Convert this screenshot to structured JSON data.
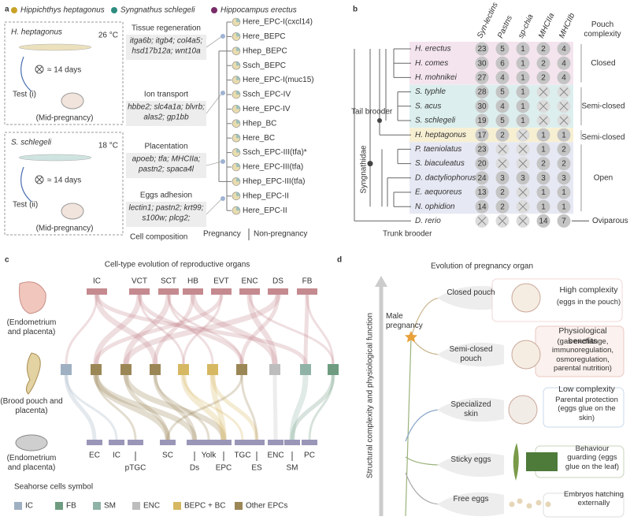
{
  "panel_a": {
    "letter": "a",
    "species": [
      "Hippichthys heptagonus",
      "Syngnathus schlegeli",
      "Hippocampus erectus"
    ],
    "species_colors": [
      "#c9a227",
      "#2e8b80",
      "#7a2c68"
    ],
    "experiments": [
      {
        "species": "H. heptagonus",
        "temperature": "26 °C",
        "duration": "≈ 14 days",
        "test": "Test (i)",
        "stage": "(Mid-pregnancy)"
      },
      {
        "species": "S. schlegeli",
        "temperature": "18 °C",
        "duration": "≈ 14 days",
        "test": "Test (ii)",
        "stage": "(Mid-pregnancy)"
      }
    ],
    "functions": [
      {
        "title": "Tissue regeneration",
        "genes": [
          "itga6b; itgb4; col4a5;",
          "hsd17b12a; wnt10a"
        ]
      },
      {
        "title": "Ion transport",
        "genes": [
          "hbbe2; slc4a1a; blvrb;",
          "alas2; gp1bb"
        ]
      },
      {
        "title": "Placentation",
        "genes": [
          "apoeb; tfa; MHCIIa;",
          "pastn2; spaca4l"
        ]
      },
      {
        "title": "Eggs adhesion",
        "genes": [
          "lectin1; pastn2; krt99;",
          "s100w; plcg2;"
        ]
      }
    ],
    "clusters": [
      {
        "label": "Here_EPC-I(cxcl14)",
        "color": "#7a2c68"
      },
      {
        "label": "Here_BEPC",
        "color": "#7a2c68"
      },
      {
        "label": "Hhep_BEPC",
        "color": "#c9a227"
      },
      {
        "label": "Ssch_BEPC",
        "color": "#2e8b80"
      },
      {
        "label": "Here_EPC-I(muc15)",
        "color": "#7a2c68"
      },
      {
        "label": "Ssch_EPC-IV",
        "color": "#2e8b80"
      },
      {
        "label": "Here_EPC-IV",
        "color": "#7a2c68"
      },
      {
        "label": "Hhep_BC",
        "color": "#c9a227"
      },
      {
        "label": "Here_BC",
        "color": "#7a2c68"
      },
      {
        "label": "Ssch_EPC-III(tfa)*",
        "color": "#2e8b80"
      },
      {
        "label": "Here_EPC-III(tfa)",
        "color": "#7a2c68"
      },
      {
        "label": "Hhep_EPC-III(tfa)",
        "color": "#c9a227"
      },
      {
        "label": "Hhep_EPC-II",
        "color": "#c9a227"
      },
      {
        "label": "Here_EPC-II",
        "color": "#7a2c68"
      }
    ],
    "cell_composition": "Cell composition",
    "pregnancy": "Pregnancy",
    "non_pregnancy": "Non-pregnancy"
  },
  "panel_b": {
    "letter": "b",
    "columns": [
      "Syn-lectins",
      "Pastns",
      "sp-chia",
      "MHCIIa",
      "MHCIIb"
    ],
    "pouch_complexity": "Pouch complexity",
    "rows": [
      {
        "species": "H. erectus",
        "counts": [
          23,
          5,
          1,
          2,
          4
        ]
      },
      {
        "species": "H. comes",
        "counts": [
          30,
          6,
          1,
          2,
          4
        ]
      },
      {
        "species": "H. mohnikei",
        "counts": [
          27,
          4,
          1,
          2,
          4
        ]
      },
      {
        "species": "S. typhle",
        "counts": [
          28,
          5,
          1,
          null,
          null
        ]
      },
      {
        "species": "S. acus",
        "counts": [
          30,
          4,
          1,
          null,
          null
        ]
      },
      {
        "species": "S. schlegeli",
        "counts": [
          19,
          5,
          1,
          null,
          null
        ]
      },
      {
        "species": "H. heptagonus",
        "counts": [
          17,
          2,
          null,
          1,
          1
        ]
      },
      {
        "species": "P. taeniolatus",
        "counts": [
          23,
          null,
          null,
          1,
          2
        ]
      },
      {
        "species": "S. biaculeatus",
        "counts": [
          20,
          null,
          null,
          2,
          2
        ]
      },
      {
        "species": "D. dactyliophorus",
        "counts": [
          24,
          3,
          3,
          3,
          3
        ]
      },
      {
        "species": "E. aequoreus",
        "counts": [
          13,
          2,
          null,
          1,
          1
        ]
      },
      {
        "species": "N. ophidion",
        "counts": [
          14,
          2,
          null,
          1,
          1
        ]
      },
      {
        "species": "D. rerio",
        "counts": [
          null,
          null,
          null,
          14,
          7
        ]
      }
    ],
    "groups": [
      "Closed",
      "Semi-closed",
      "Semi-closed",
      "Open",
      "Oviparous"
    ],
    "tail_brooder": "Tail brooder",
    "family": "Syngnathidae",
    "trunk_brooder": "Trunk brooder"
  },
  "panel_c": {
    "letter": "c",
    "title": "Cell-type evolution of reproductive organs",
    "top_cells": [
      "IC",
      "VCT",
      "SCT",
      "HB",
      "EVT",
      "ENC",
      "DS",
      "FB"
    ],
    "bottom_cells": [
      "EC",
      "IC",
      "pTGC",
      "SC",
      "Ds",
      "Yolk",
      "EPC",
      "TGC",
      "ES",
      "ENC",
      "SM",
      "PC"
    ],
    "row_labels": [
      "(Endometrium and placenta)",
      "(Brood pouch and placenta)",
      "(Endometrium and placenta)"
    ],
    "legend_title": "Seahorse cells symbol",
    "legend": [
      {
        "label": "IC",
        "color": "#9fb0c2"
      },
      {
        "label": "FB",
        "color": "#6f9c80"
      },
      {
        "label": "SM",
        "color": "#8fb3a6"
      },
      {
        "label": "ENC",
        "color": "#bdbdbd"
      },
      {
        "label": "BEPC + BC",
        "color": "#d6b862"
      },
      {
        "label": "Other EPCs",
        "color": "#9b8656"
      }
    ]
  },
  "panel_d": {
    "letter": "d",
    "title": "Evolution of pregnancy organ",
    "axis": "Structural complexity and physiological function",
    "male_pregnancy": "Male pregnancy",
    "stages": [
      {
        "label": "Closed pouch",
        "notes": [
          "High complexity",
          "(eggs in the pouch)"
        ]
      },
      {
        "label": "Semi-closed pouch",
        "notes": [
          "Physiological benefits",
          "(gas exchange, immunoregulation, osmoregulation, parental nutrition)"
        ]
      },
      {
        "label": "Specialized skin",
        "notes": [
          "Low complexity",
          "Parental protection (eggs glue on the skin)"
        ]
      },
      {
        "label": "Sticky eggs",
        "notes": [
          "Behaviour guarding (eggs glue on the leaf)"
        ]
      },
      {
        "label": "Free eggs",
        "notes": [
          "Embryos hatching externally"
        ]
      }
    ]
  }
}
